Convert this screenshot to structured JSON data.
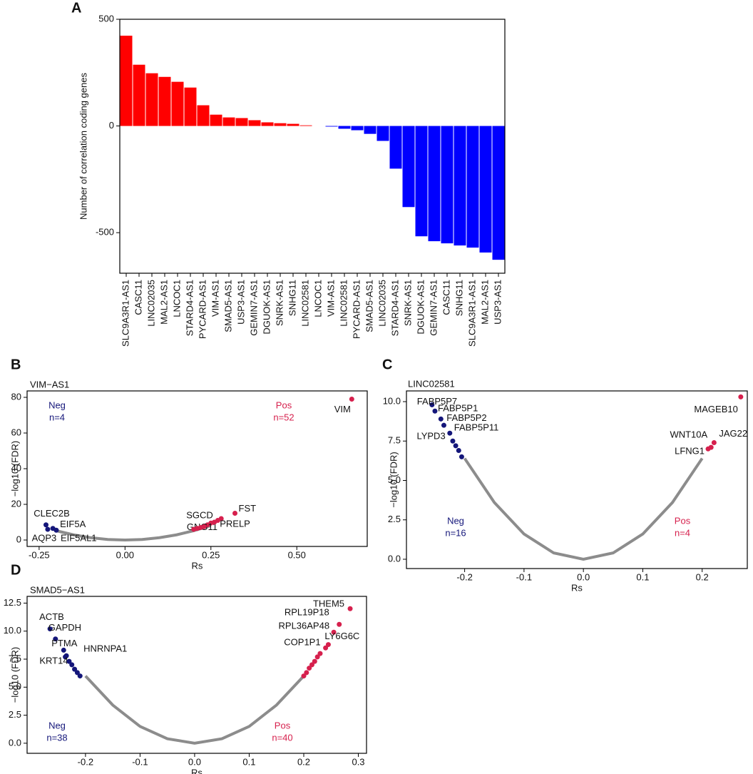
{
  "chart_data": [
    {
      "type": "bar",
      "letter": "A",
      "ylabel": "Number of correlation coding genes",
      "categories": [
        "SLC9A3R1-AS1",
        "CASC11",
        "LINC02035",
        "MAL2-AS1",
        "LNCOC1",
        "STARD4-AS1",
        "PYCARD-AS1",
        "VIM-AS1",
        "SMAD5-AS1",
        "USP3-AS1",
        "GEMIN7-AS1",
        "DGUOK-AS1",
        "SNRK-AS1",
        "SNHG11",
        "LINC02581",
        "LNCOC1",
        "VIM-AS1",
        "LINC02581",
        "PYCARD-AS1",
        "SMAD5-AS1",
        "LINC02035",
        "STARD4-AS1",
        "SNRK-AS1",
        "DGUOK-AS1",
        "GEMIN7-AS1",
        "CASC11",
        "SNHG11",
        "SLC9A3R1-AS1",
        "MAL2-AS1",
        "USP3-AS1"
      ],
      "values": [
        423,
        287,
        247,
        230,
        207,
        180,
        97,
        53,
        40,
        37,
        27,
        17,
        13,
        10,
        3,
        0,
        -3,
        -13,
        -20,
        -37,
        -70,
        -200,
        -380,
        -517,
        -540,
        -550,
        -560,
        -570,
        -593,
        -627
      ],
      "colors": [
        "#ff0000",
        "#ff0000",
        "#ff0000",
        "#ff0000",
        "#ff0000",
        "#ff0000",
        "#ff0000",
        "#ff0000",
        "#ff0000",
        "#ff0000",
        "#ff0000",
        "#ff0000",
        "#ff0000",
        "#ff0000",
        "#ff0000",
        "#0000ff",
        "#0000ff",
        "#0000ff",
        "#0000ff",
        "#0000ff",
        "#0000ff",
        "#0000ff",
        "#0000ff",
        "#0000ff",
        "#0000ff",
        "#0000ff",
        "#0000ff",
        "#0000ff",
        "#0000ff",
        "#0000ff"
      ],
      "ylim": [
        -690,
        500
      ],
      "yticks": [
        -500,
        0,
        500
      ]
    },
    {
      "type": "scatter",
      "letter": "B",
      "subtitle": "VIM−AS1",
      "xlabel": "Rs",
      "ylabel": "−log10 (FDR)",
      "xlim": [
        -0.285,
        0.705
      ],
      "ylim": [
        -3.6,
        83.6
      ],
      "xticks": [
        -0.25,
        {
          "value": 0,
          "label": "0.00"
        },
        0.25,
        {
          "value": 0.5,
          "label": "0.50"
        }
      ],
      "yticks": [
        0,
        20,
        40,
        60,
        80
      ],
      "series": [
        {
          "color": "#8c8c8c",
          "x": [
            -0.2,
            -0.15,
            -0.1,
            -0.05,
            0,
            0.05,
            0.1,
            0.15,
            0.2,
            0.25
          ],
          "values": [
            5.2,
            2.9,
            1.3,
            0.3,
            0,
            0.3,
            1.3,
            2.9,
            5.2,
            8.1
          ]
        },
        {
          "color": "#14167a",
          "x": [
            -0.23,
            -0.21,
            -0.225,
            -0.2
          ],
          "values": [
            8.5,
            6.5,
            6,
            5.5
          ],
          "labels": [
            "CLEC2B",
            "EIF5A",
            "AQP3",
            "EIF5AL1"
          ]
        },
        {
          "color": "#d6204d",
          "x": [
            0.66,
            0.32,
            0.28,
            0.25,
            0.24,
            0.2,
            0.21,
            0.22,
            0.23,
            0.26,
            0.27
          ],
          "values": [
            79,
            15,
            12,
            9.5,
            8.5,
            6,
            6.5,
            7,
            7.5,
            10,
            11
          ],
          "labels": [
            "VIM",
            "FST",
            "PRELP",
            "SGCD",
            "GNG11",
            null,
            null,
            null,
            null,
            null,
            null
          ]
        }
      ],
      "annotations": [
        {
          "text": "Neg",
          "color": "#14167a"
        },
        {
          "text": "n=4",
          "color": "#14167a"
        },
        {
          "text": "Pos",
          "color": "#d6204d"
        },
        {
          "text": "n=52",
          "color": "#d6204d"
        }
      ]
    },
    {
      "type": "scatter",
      "letter": "C",
      "subtitle": "LINC02581",
      "xlabel": "Rs",
      "ylabel": "−log10 (FDR)",
      "xlim": [
        -0.298,
        0.276
      ],
      "ylim": [
        -0.59,
        10.68
      ],
      "xticks": [
        -0.2,
        -0.1,
        {
          "value": 0,
          "label": "0.0"
        },
        0.1,
        0.2
      ],
      "yticks": [
        {
          "value": 0,
          "label": "0.0"
        },
        2.5,
        {
          "value": 5,
          "label": "5.0"
        },
        7.5,
        {
          "value": 10,
          "label": "10.0"
        }
      ],
      "series": [
        {
          "color": "#8c8c8c",
          "x": [
            -0.2,
            -0.15,
            -0.1,
            -0.05,
            0,
            0.05,
            0.1,
            0.15,
            0.2
          ],
          "values": [
            6.4,
            3.6,
            1.6,
            0.4,
            0,
            0.4,
            1.6,
            3.6,
            6.4
          ]
        },
        {
          "color": "#14167a",
          "x": [
            -0.255,
            -0.25,
            -0.24,
            -0.235,
            -0.225,
            -0.22,
            -0.215,
            -0.21,
            -0.205
          ],
          "values": [
            9.8,
            9.4,
            8.9,
            8.5,
            8.0,
            7.5,
            7.2,
            6.9,
            6.5
          ],
          "labels": [
            "FABP5P7",
            "FABP5P1",
            "FABP5P2",
            "LYPD3",
            "FABP5P11",
            null,
            null,
            null,
            null
          ]
        },
        {
          "color": "#d6204d",
          "x": [
            0.265,
            0.22,
            0.215,
            0.21
          ],
          "values": [
            10.3,
            7.4,
            7.1,
            7.0
          ],
          "labels": [
            "MAGEB10",
            "JAG22",
            "WNT10A",
            "LFNG1"
          ]
        }
      ],
      "annotations": [
        {
          "text": "Neg",
          "color": "#14167a"
        },
        {
          "text": "n=16",
          "color": "#14167a"
        },
        {
          "text": "Pos",
          "color": "#d6204d"
        },
        {
          "text": "n=4",
          "color": "#d6204d"
        }
      ]
    },
    {
      "type": "scatter",
      "letter": "D",
      "subtitle": "SMAD5−AS1",
      "xlabel": "Rs",
      "ylabel": "−log10 (FDR)",
      "xlim": [
        -0.307,
        0.315
      ],
      "ylim": [
        -0.9,
        13.1
      ],
      "xticks": [
        -0.2,
        -0.1,
        {
          "value": 0,
          "label": "0.0"
        },
        0.1,
        0.2,
        0.3
      ],
      "yticks": [
        {
          "value": 0,
          "label": "0.0"
        },
        2.5,
        {
          "value": 5,
          "label": "5.0"
        },
        7.5,
        {
          "value": 10,
          "label": "10.0"
        },
        12.5
      ],
      "series": [
        {
          "color": "#8c8c8c",
          "x": [
            -0.2,
            -0.15,
            -0.1,
            -0.05,
            0,
            0.05,
            0.1,
            0.15,
            0.2
          ],
          "values": [
            6,
            3.4,
            1.5,
            0.4,
            0,
            0.4,
            1.5,
            3.4,
            6
          ]
        },
        {
          "color": "#14167a",
          "x": [
            -0.265,
            -0.255,
            -0.24,
            -0.235,
            -0.237,
            -0.23,
            -0.225,
            -0.22,
            -0.215,
            -0.21
          ],
          "values": [
            10.2,
            9.3,
            8.3,
            7.8,
            7.7,
            7.3,
            7.0,
            6.6,
            6.3,
            6.0
          ],
          "labels": [
            "ACTB",
            "GAPDH",
            "PTMA",
            "HNRNPA1",
            "KRT14",
            null,
            null,
            null,
            null,
            null
          ]
        },
        {
          "color": "#d6204d",
          "x": [
            0.285,
            0.265,
            0.255,
            0.245,
            0.24,
            0.2,
            0.205,
            0.21,
            0.215,
            0.22,
            0.225,
            0.23
          ],
          "values": [
            12.0,
            10.6,
            9.9,
            8.8,
            8.5,
            6,
            6.3,
            6.7,
            7,
            7.3,
            7.7,
            8
          ],
          "labels": [
            "THEM5",
            "RPL19P18",
            "RPL36AP48",
            "LY6G6C",
            "COP1P1",
            null,
            null,
            null,
            null,
            null,
            null,
            null
          ]
        }
      ],
      "annotations": [
        {
          "text": "Neg",
          "color": "#14167a"
        },
        {
          "text": "n=38",
          "color": "#14167a"
        },
        {
          "text": "Pos",
          "color": "#d6204d"
        },
        {
          "text": "n=40",
          "color": "#d6204d"
        }
      ]
    }
  ]
}
